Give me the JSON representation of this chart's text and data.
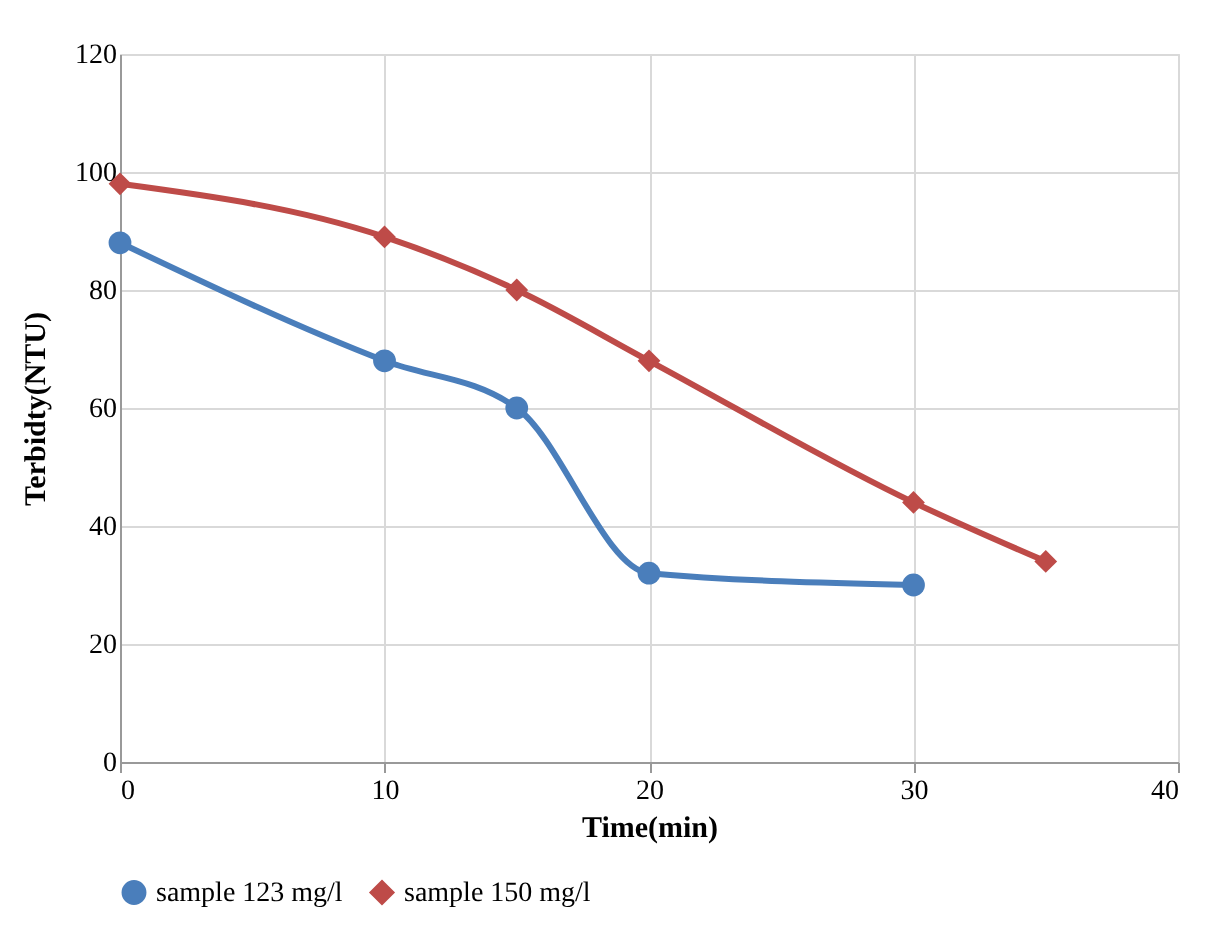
{
  "chart_data": {
    "type": "line",
    "xlabel": "Time(min)",
    "ylabel": "Terbidty(NTU)",
    "xlim": [
      0,
      40
    ],
    "xticks": [
      0,
      10,
      20,
      30,
      40
    ],
    "ylim": [
      0,
      120
    ],
    "yticks": [
      0,
      20,
      40,
      60,
      80,
      100,
      120
    ],
    "grid": true,
    "legend": "bottom",
    "line_style": "solid",
    "series": [
      {
        "name": "sample 123 mg/l",
        "color": "#4a7ebb",
        "marker": "circle",
        "x": [
          0,
          10,
          15,
          20,
          30
        ],
        "values": [
          88,
          68,
          60,
          32,
          30
        ]
      },
      {
        "name": "sample 150 mg/l",
        "color": "#be4b48",
        "marker": "diamond",
        "x": [
          0,
          10,
          15,
          20,
          30,
          35
        ],
        "values": [
          98,
          89,
          80,
          68,
          44,
          34
        ]
      }
    ]
  }
}
